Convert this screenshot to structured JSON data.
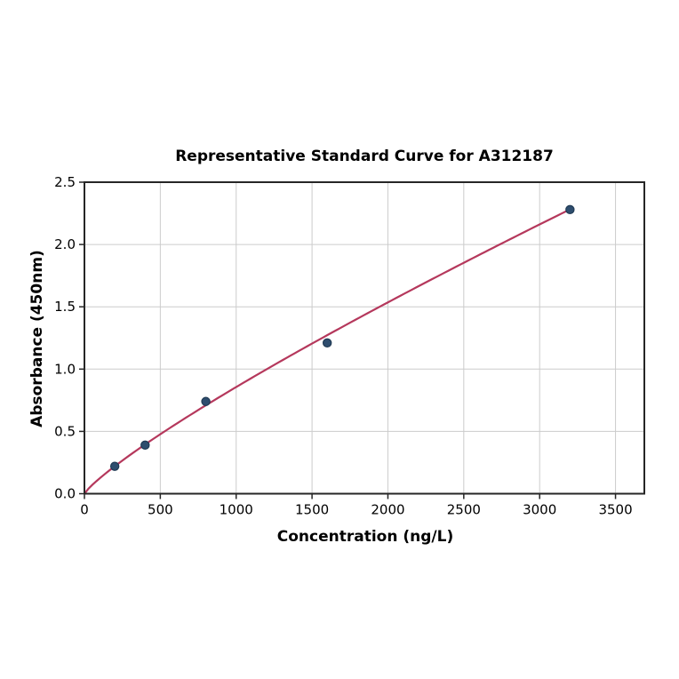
{
  "chart_data": {
    "type": "scatter",
    "title": "Representative Standard Curve for A312187",
    "xlabel": "Concentration (ng/L)",
    "ylabel": "Absorbance (450nm)",
    "points": {
      "x": [
        200,
        400,
        800,
        1600,
        3200
      ],
      "y": [
        0.22,
        0.39,
        0.74,
        1.21,
        2.28
      ]
    },
    "fit_curve": {
      "type": "power",
      "a": 0.002532,
      "b": 0.843,
      "x_start": 0,
      "x_end": 3200
    },
    "xticks": [
      0,
      500,
      1000,
      1500,
      2000,
      2500,
      3000,
      3500
    ],
    "xtick_labels": [
      "0",
      "500",
      "1000",
      "1500",
      "2000",
      "2500",
      "3000",
      "3500"
    ],
    "yticks": [
      0.0,
      0.5,
      1.0,
      1.5,
      2.0,
      2.5
    ],
    "ytick_labels": [
      "0.0",
      "0.5",
      "1.0",
      "1.5",
      "2.0",
      "2.5"
    ],
    "xlim": [
      0,
      3690
    ],
    "ylim": [
      0,
      2.5
    ],
    "grid": true,
    "legend": "none",
    "colors": {
      "curve": "#b5385c",
      "marker": "#2e4d6e",
      "marker_edge": "#203a54",
      "grid": "#cccccc",
      "spine": "#262626",
      "text": "#000000",
      "background": "#ffffff"
    }
  }
}
